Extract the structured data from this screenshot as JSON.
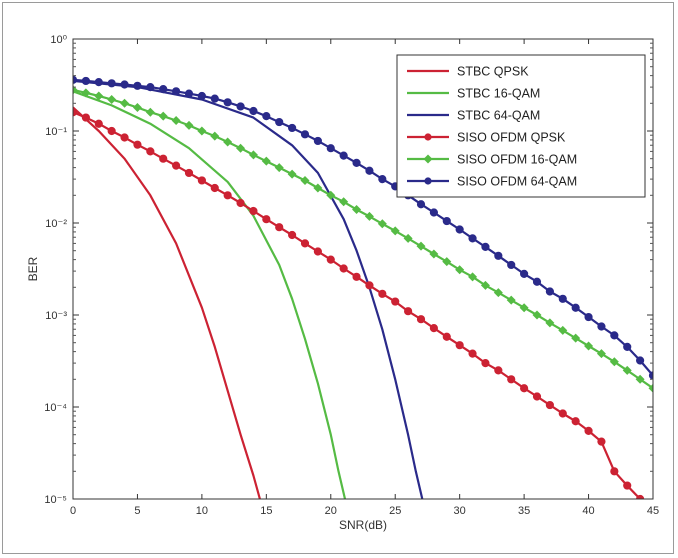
{
  "chart_data": {
    "type": "line",
    "title": "",
    "xlabel": "SNR(dB)",
    "ylabel": "BER",
    "xlim": [
      0,
      45
    ],
    "ylim": [
      1e-05,
      1
    ],
    "yscale": "log",
    "grid": false,
    "legend_position": "top-right",
    "x_ticks": [
      0,
      5,
      10,
      15,
      20,
      25,
      30,
      35,
      40,
      45
    ],
    "y_ticks": [
      {
        "value": 1,
        "label": "10⁰"
      },
      {
        "value": 0.1,
        "label": "10⁻¹"
      },
      {
        "value": 0.01,
        "label": "10⁻²"
      },
      {
        "value": 0.001,
        "label": "10⁻³"
      },
      {
        "value": 0.0001,
        "label": "10⁻⁴"
      },
      {
        "value": 1e-05,
        "label": "10⁻⁵"
      }
    ],
    "series": [
      {
        "name": "STBC QPSK",
        "color": "#cc2233",
        "marker": "none",
        "x": [
          0,
          2,
          4,
          6,
          8,
          10,
          11,
          12,
          13,
          14,
          14.5
        ],
        "y": [
          0.18,
          0.1,
          0.05,
          0.02,
          0.006,
          0.0012,
          0.00045,
          0.00015,
          5e-05,
          1.8e-05,
          1e-05
        ]
      },
      {
        "name": "STBC 16-QAM",
        "color": "#55bb44",
        "marker": "none",
        "x": [
          0,
          3,
          6,
          9,
          12,
          14,
          16,
          17,
          18,
          19,
          20,
          20.6,
          21.1
        ],
        "y": [
          0.27,
          0.19,
          0.12,
          0.065,
          0.028,
          0.012,
          0.0035,
          0.0015,
          0.00055,
          0.00018,
          5e-05,
          2e-05,
          1e-05
        ]
      },
      {
        "name": "STBC 64-QAM",
        "color": "#2a2a8a",
        "marker": "none",
        "x": [
          0,
          5,
          10,
          14,
          17,
          19,
          21,
          22,
          23,
          24,
          25,
          26,
          26.6,
          27.1
        ],
        "y": [
          0.35,
          0.3,
          0.22,
          0.14,
          0.07,
          0.035,
          0.011,
          0.005,
          0.002,
          0.0007,
          0.0002,
          5e-05,
          2e-05,
          1e-05
        ]
      },
      {
        "name": "SISO OFDM QPSK",
        "color": "#cc2233",
        "marker": "circle",
        "x": [
          0,
          1,
          2,
          3,
          4,
          5,
          6,
          7,
          8,
          9,
          10,
          11,
          12,
          13,
          14,
          15,
          16,
          17,
          18,
          19,
          20,
          21,
          22,
          23,
          24,
          25,
          26,
          27,
          28,
          29,
          30,
          31,
          32,
          33,
          34,
          35,
          36,
          37,
          38,
          39,
          40,
          41,
          42,
          43,
          44
        ],
        "y": [
          0.16,
          0.14,
          0.12,
          0.1,
          0.085,
          0.071,
          0.06,
          0.05,
          0.042,
          0.035,
          0.029,
          0.024,
          0.02,
          0.0165,
          0.0135,
          0.011,
          0.009,
          0.0074,
          0.006,
          0.0049,
          0.004,
          0.0032,
          0.0026,
          0.0021,
          0.0017,
          0.0014,
          0.0011,
          0.0009,
          0.00072,
          0.00058,
          0.00047,
          0.00038,
          0.0003,
          0.00025,
          0.0002,
          0.00016,
          0.00013,
          0.000105,
          8.5e-05,
          7e-05,
          5.5e-05,
          4.2e-05,
          2e-05,
          1.4e-05,
          1e-05
        ]
      },
      {
        "name": "SISO OFDM 16-QAM",
        "color": "#55bb44",
        "marker": "diamond",
        "x": [
          0,
          1,
          2,
          3,
          4,
          5,
          6,
          7,
          8,
          9,
          10,
          11,
          12,
          13,
          14,
          15,
          16,
          17,
          18,
          19,
          20,
          21,
          22,
          23,
          24,
          25,
          26,
          27,
          28,
          29,
          30,
          31,
          32,
          33,
          34,
          35,
          36,
          37,
          38,
          39,
          40,
          41,
          42,
          43,
          44,
          45
        ],
        "y": [
          0.28,
          0.26,
          0.24,
          0.22,
          0.2,
          0.18,
          0.16,
          0.145,
          0.13,
          0.115,
          0.1,
          0.088,
          0.076,
          0.065,
          0.055,
          0.047,
          0.04,
          0.034,
          0.029,
          0.024,
          0.02,
          0.017,
          0.014,
          0.0118,
          0.0098,
          0.0082,
          0.0068,
          0.0056,
          0.0046,
          0.0038,
          0.0031,
          0.0026,
          0.0021,
          0.00175,
          0.00145,
          0.0012,
          0.001,
          0.00082,
          0.00068,
          0.00056,
          0.00046,
          0.00038,
          0.00031,
          0.00025,
          0.0002,
          0.00016
        ]
      },
      {
        "name": "SISO OFDM 64-QAM",
        "color": "#2a2a8a",
        "marker": "circle",
        "x": [
          0,
          1,
          2,
          3,
          4,
          5,
          6,
          7,
          8,
          9,
          10,
          11,
          12,
          13,
          14,
          15,
          16,
          17,
          18,
          19,
          20,
          21,
          22,
          23,
          24,
          25,
          26,
          27,
          28,
          29,
          30,
          31,
          32,
          33,
          34,
          35,
          36,
          37,
          38,
          39,
          40,
          41,
          42,
          43,
          44,
          45
        ],
        "y": [
          0.36,
          0.35,
          0.34,
          0.33,
          0.32,
          0.31,
          0.3,
          0.285,
          0.27,
          0.255,
          0.24,
          0.225,
          0.205,
          0.185,
          0.165,
          0.145,
          0.125,
          0.108,
          0.092,
          0.078,
          0.065,
          0.054,
          0.045,
          0.037,
          0.03,
          0.025,
          0.02,
          0.016,
          0.013,
          0.0105,
          0.0085,
          0.0068,
          0.0055,
          0.0044,
          0.0035,
          0.0028,
          0.0023,
          0.0018,
          0.0015,
          0.0012,
          0.00095,
          0.00075,
          0.0006,
          0.00045,
          0.00032,
          0.00022
        ]
      }
    ]
  }
}
